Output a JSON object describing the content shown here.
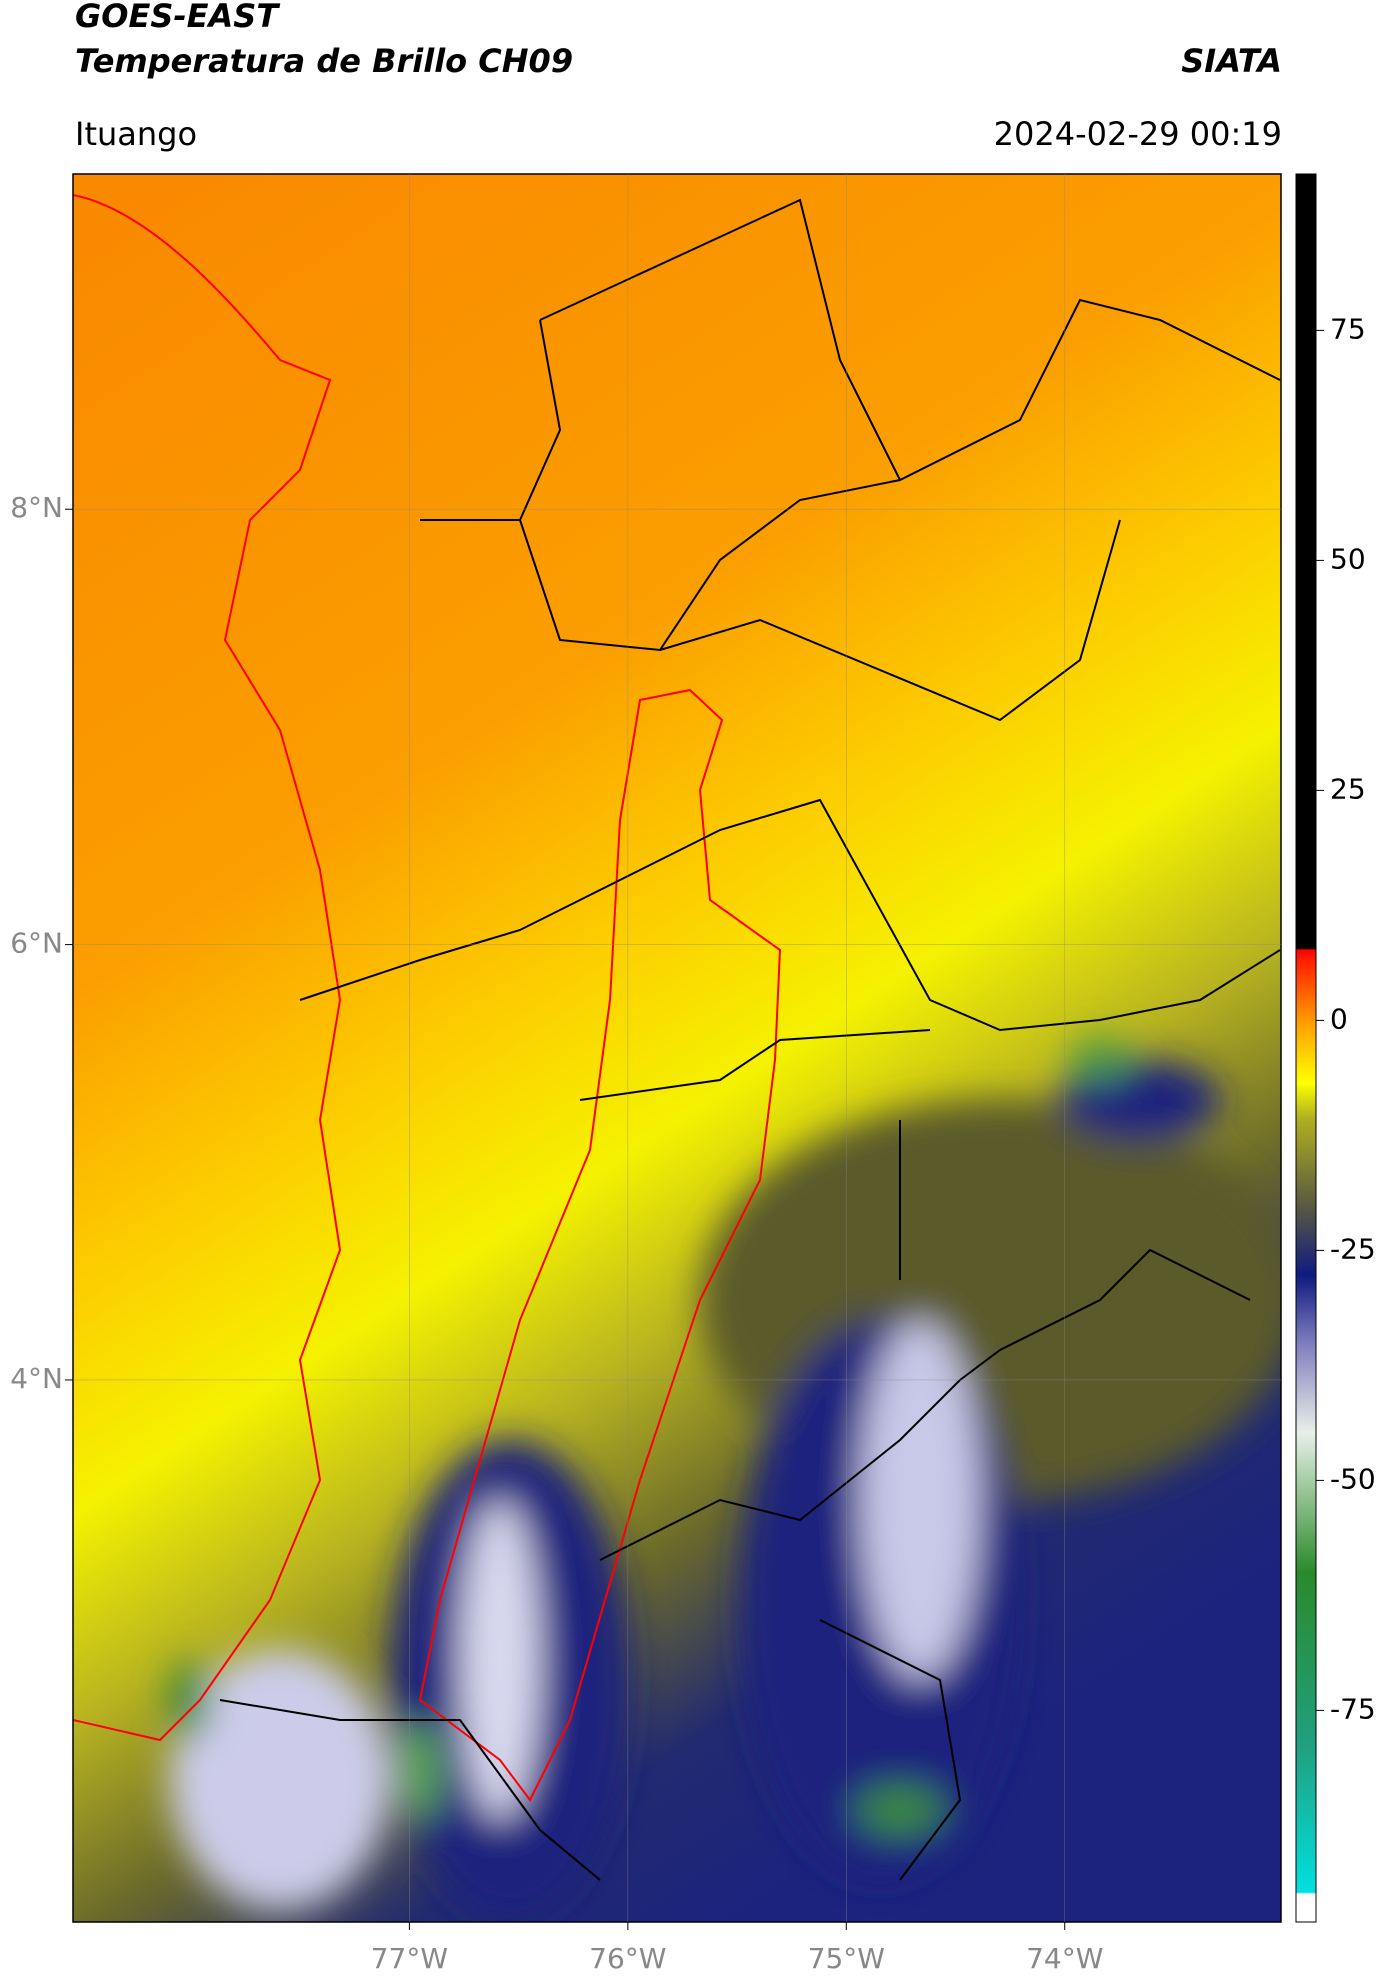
{
  "title": "GOES-EAST",
  "subtitle": "Temperatura de Brillo CH09",
  "source": "SIATA",
  "location": "Ituango",
  "datetime": "2024-02-29 00:19",
  "map": {
    "xlim": [
      -78.54,
      -73.01
    ],
    "ylim": [
      1.51,
      9.54
    ],
    "xticks": [
      {
        "value": -77,
        "label": "77°W"
      },
      {
        "value": -76,
        "label": "76°W"
      },
      {
        "value": -75,
        "label": "75°W"
      },
      {
        "value": -74,
        "label": "74°W"
      }
    ],
    "yticks": [
      {
        "value": 8,
        "label": "8°N"
      },
      {
        "value": 6,
        "label": "6°N"
      },
      {
        "value": 4,
        "label": "4°N"
      }
    ],
    "grid": true
  },
  "colorbar": {
    "lim": [
      -98,
      92
    ],
    "ticks": [
      75,
      50,
      25,
      0,
      -25,
      -50,
      -75
    ]
  }
}
